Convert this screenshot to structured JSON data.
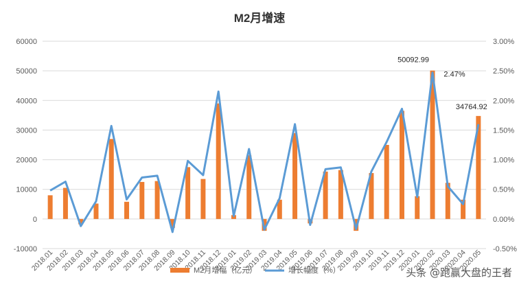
{
  "chart_data": {
    "type": "bar",
    "title": "M2月增速",
    "categories": [
      "2018.01",
      "2018.02",
      "2018.03",
      "2018.04",
      "2018.05",
      "2018.06",
      "2018.07",
      "2018.08",
      "2018.09",
      "2018.10",
      "2018.11",
      "2018.12",
      "2019.01",
      "2019.02",
      "2019.03",
      "2019.04",
      "2019.05",
      "2019.06",
      "2019.07",
      "2019.08",
      "2019.09",
      "2019.10",
      "2019.11",
      "2019.12",
      "2020.01",
      "2020.02",
      "2020.03",
      "2020.04",
      "2020.05"
    ],
    "series": [
      {
        "name": "M2月增幅（亿元）",
        "type": "bar",
        "axis": "left",
        "color": "#ED7D31",
        "values": [
          8000,
          10500,
          -1800,
          5200,
          27000,
          5800,
          12500,
          12800,
          -3000,
          17500,
          13500,
          39000,
          1300,
          21500,
          -4000,
          6500,
          29000,
          -1500,
          16000,
          16500,
          -4000,
          15500,
          25000,
          36500,
          7700,
          50092.99,
          12200,
          6500,
          34764.92
        ]
      },
      {
        "name": "增长幅度（%）",
        "type": "line",
        "axis": "right",
        "color": "#5B9BD5",
        "values": [
          0.48,
          0.63,
          -0.12,
          0.3,
          1.57,
          0.33,
          0.7,
          0.73,
          -0.22,
          0.98,
          0.74,
          2.15,
          0.05,
          1.18,
          -0.18,
          0.35,
          1.6,
          -0.1,
          0.84,
          0.87,
          -0.17,
          0.8,
          1.3,
          1.86,
          0.37,
          2.47,
          0.55,
          0.25,
          1.6
        ]
      }
    ],
    "left_axis": {
      "min": -10000,
      "max": 60000,
      "step": 10000,
      "ticks": [
        "-10000",
        "0",
        "10000",
        "20000",
        "30000",
        "40000",
        "50000",
        "60000"
      ]
    },
    "right_axis": {
      "min": -0.5,
      "max": 3.0,
      "step": 0.5,
      "ticks": [
        "-0.50%",
        "0.00%",
        "0.50%",
        "1.00%",
        "1.50%",
        "2.00%",
        "2.50%",
        "3.00%"
      ]
    },
    "annotations": [
      {
        "index": 25,
        "series": 0,
        "text": "50092.99"
      },
      {
        "index": 25,
        "series": 1,
        "text": "2.47%"
      },
      {
        "index": 28,
        "series": 0,
        "text": "34764.92"
      }
    ],
    "legend_position": "bottom",
    "grid": true
  },
  "watermark": "头条 @跑赢大盘的王者"
}
